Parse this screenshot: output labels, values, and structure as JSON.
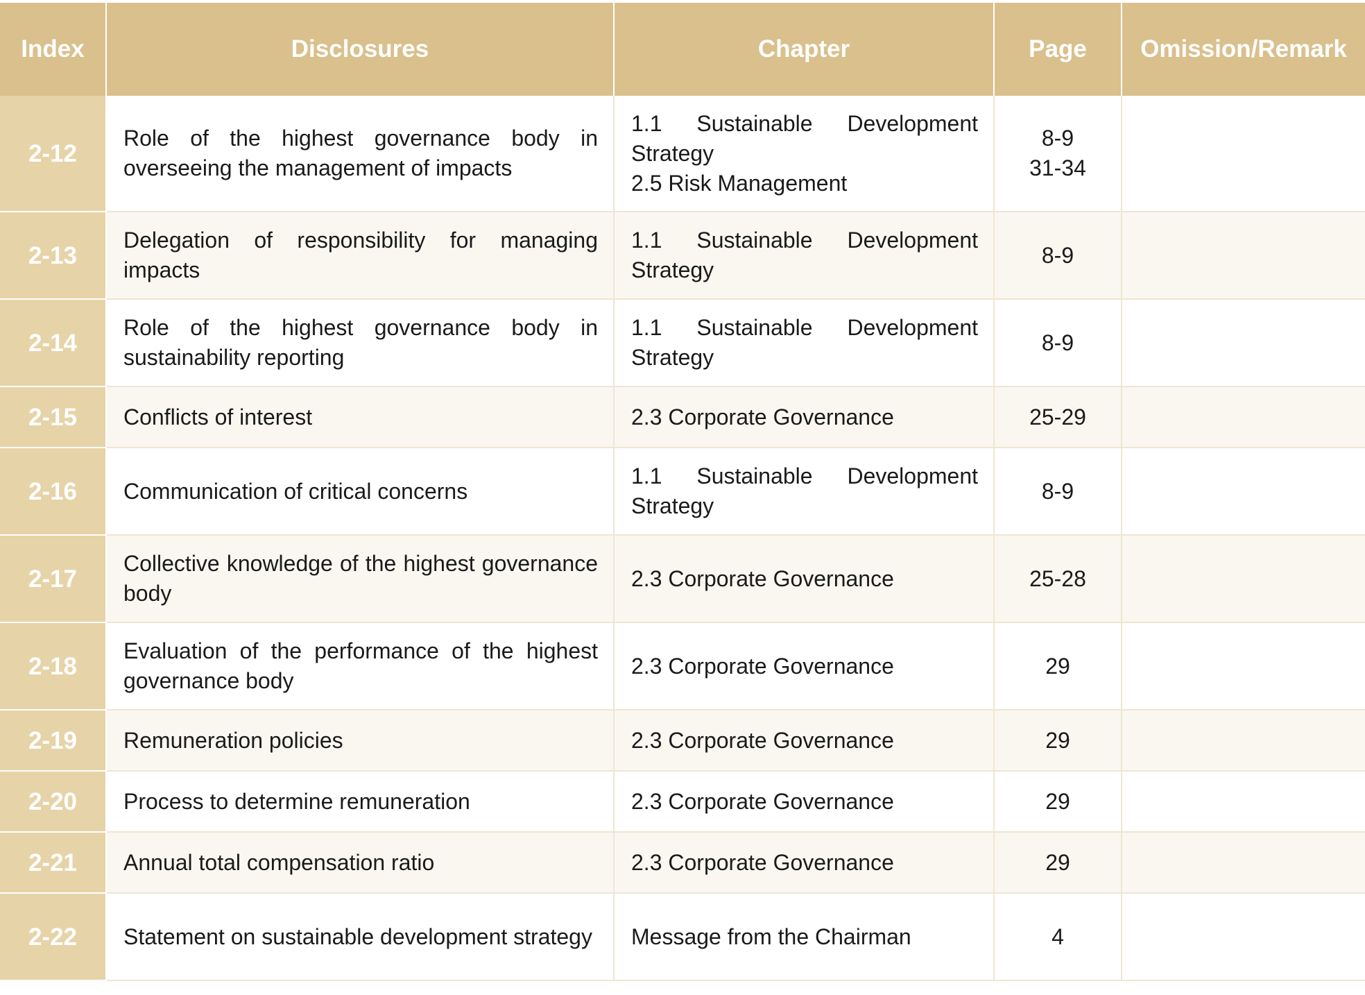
{
  "table": {
    "headers": {
      "index": "Index",
      "disclosures": "Disclosures",
      "chapter": "Chapter",
      "page": "Page",
      "omission": "Omission/Remark"
    },
    "rows": [
      {
        "index": "2-12",
        "disclosure": "Role of the highest governance body in overseeing the management of impacts",
        "chapter": [
          "1.1 Sustainable Development Strategy",
          "2.5 Risk Management"
        ],
        "pages": [
          "8-9",
          "31-34"
        ],
        "omission": ""
      },
      {
        "index": "2-13",
        "disclosure": "Delegation of responsibility for managing impacts",
        "chapter": [
          "1.1 Sustainable Development Strategy"
        ],
        "pages": [
          "8-9"
        ],
        "omission": ""
      },
      {
        "index": "2-14",
        "disclosure": "Role of the highest governance body in sustainability reporting",
        "chapter": [
          "1.1 Sustainable Development Strategy"
        ],
        "pages": [
          "8-9"
        ],
        "omission": ""
      },
      {
        "index": "2-15",
        "disclosure": "Conflicts of interest",
        "chapter": [
          "2.3 Corporate Governance"
        ],
        "pages": [
          "25-29"
        ],
        "omission": ""
      },
      {
        "index": "2-16",
        "disclosure": "Communication of critical concerns",
        "chapter": [
          "1.1 Sustainable Development Strategy"
        ],
        "pages": [
          "8-9"
        ],
        "omission": ""
      },
      {
        "index": "2-17",
        "disclosure": "Collective knowledge of the highest governance body",
        "chapter": [
          "2.3 Corporate Governance"
        ],
        "pages": [
          "25-28"
        ],
        "omission": ""
      },
      {
        "index": "2-18",
        "disclosure": "Evaluation of the performance of the highest governance body",
        "chapter": [
          "2.3 Corporate Governance"
        ],
        "pages": [
          "29"
        ],
        "omission": ""
      },
      {
        "index": "2-19",
        "disclosure": "Remuneration policies",
        "chapter": [
          "2.3 Corporate Governance"
        ],
        "pages": [
          "29"
        ],
        "omission": ""
      },
      {
        "index": "2-20",
        "disclosure": "Process to determine remuneration",
        "chapter": [
          "2.3 Corporate Governance"
        ],
        "pages": [
          "29"
        ],
        "omission": ""
      },
      {
        "index": "2-21",
        "disclosure": "Annual total compensation ratio",
        "chapter": [
          "2.3 Corporate Governance"
        ],
        "pages": [
          "29"
        ],
        "omission": ""
      },
      {
        "index": "2-22",
        "disclosure": "Statement on sustainable development strategy",
        "chapter": [
          "Message from the Chairman"
        ],
        "pages": [
          "4"
        ],
        "omission": ""
      }
    ]
  },
  "colors": {
    "header_bg": "#d9c08c",
    "index_bg": "#e6d3a8",
    "row_alt_bg": "#faf7f1",
    "grid_line": "#efe6d2",
    "header_text": "#ffffff",
    "body_text": "#1a1a1a"
  }
}
